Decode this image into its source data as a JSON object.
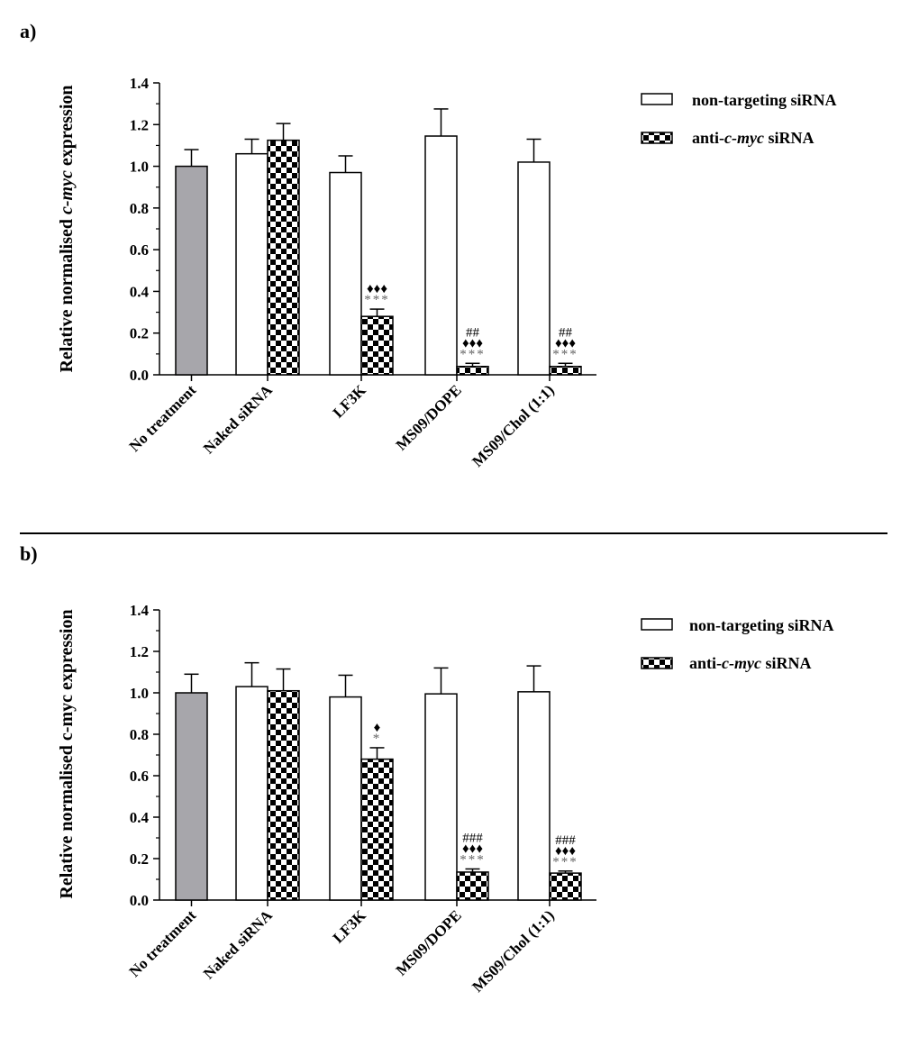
{
  "charts": [
    {
      "panel_label": "a)",
      "ylabel_pre": "Relative normalised ",
      "ylabel_ital": "c-myc",
      "ylabel_post": " expression"
    },
    {
      "panel_label": "b)",
      "ylabel_pre": "Relative normalised c-myc expression",
      "ylabel_ital": "",
      "ylabel_post": ""
    }
  ],
  "legend": {
    "nontargeting": "non-targeting siRNA",
    "anti_pre": "anti-",
    "anti_ital": "c-myc",
    "anti_post": " siRNA"
  },
  "colors": {
    "no_treatment": "#a7a6ab",
    "nontargeting": "#ffffff",
    "anti": "checkered black/white"
  },
  "chart_data": [
    {
      "type": "bar",
      "categories": [
        "No treatment",
        "Naked siRNA",
        "LF3K",
        "MS09/DOPE",
        "MS09/Chol (1:1)"
      ],
      "ylim": [
        0,
        1.4
      ],
      "yticks": [
        "0.0",
        "0.2",
        "0.4",
        "0.6",
        "0.8",
        "1.0",
        "1.2",
        "1.4"
      ],
      "series": [
        {
          "name": "non-targeting siRNA",
          "values": [
            1.0,
            1.06,
            0.97,
            1.145,
            1.02
          ],
          "errors": [
            0.08,
            0.07,
            0.08,
            0.13,
            0.11
          ]
        },
        {
          "name": "anti-c-myc siRNA",
          "values": [
            null,
            1.125,
            0.28,
            0.04,
            0.04
          ],
          "errors": [
            null,
            0.08,
            0.035,
            0.015,
            0.015
          ]
        }
      ],
      "annotations": [
        {
          "category": "LF3K",
          "lines": [
            "♦♦♦",
            "***"
          ]
        },
        {
          "category": "MS09/DOPE",
          "lines": [
            "##",
            "♦♦♦",
            "***"
          ]
        },
        {
          "category": "MS09/Chol (1:1)",
          "lines": [
            "##",
            "♦♦♦",
            "***"
          ]
        }
      ]
    },
    {
      "type": "bar",
      "categories": [
        "No treatment",
        "Naked siRNA",
        "LF3K",
        "MS09/DOPE",
        "MS09/Chol (1:1)"
      ],
      "ylim": [
        0,
        1.4
      ],
      "yticks": [
        "0.0",
        "0.2",
        "0.4",
        "0.6",
        "0.8",
        "1.0",
        "1.2",
        "1.4"
      ],
      "series": [
        {
          "name": "non-targeting siRNA",
          "values": [
            1.0,
            1.03,
            0.98,
            0.995,
            1.005
          ],
          "errors": [
            0.09,
            0.115,
            0.105,
            0.125,
            0.125
          ]
        },
        {
          "name": "anti-c-myc siRNA",
          "values": [
            null,
            1.01,
            0.68,
            0.135,
            0.13
          ],
          "errors": [
            null,
            0.105,
            0.055,
            0.015,
            0.01
          ]
        }
      ],
      "annotations": [
        {
          "category": "LF3K",
          "lines": [
            "♦",
            "*"
          ]
        },
        {
          "category": "MS09/DOPE",
          "lines": [
            "###",
            "♦♦♦",
            "***"
          ]
        },
        {
          "category": "MS09/Chol (1:1)",
          "lines": [
            "###",
            "♦♦♦",
            "***"
          ]
        }
      ]
    }
  ]
}
